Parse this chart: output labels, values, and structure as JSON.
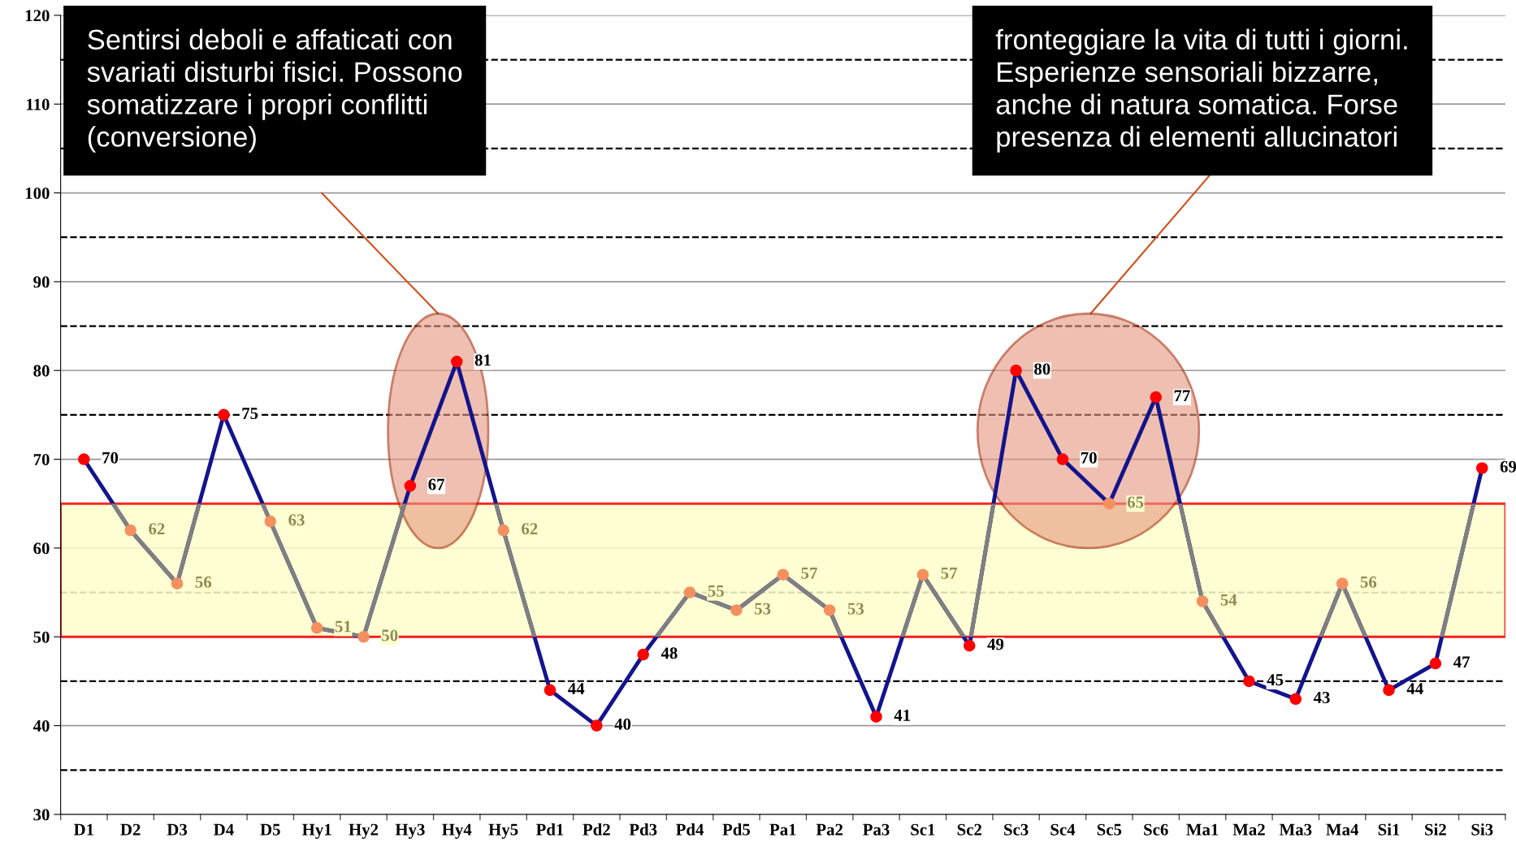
{
  "chart_data": {
    "type": "line",
    "categories": [
      "D1",
      "D2",
      "D3",
      "D4",
      "D5",
      "Hy1",
      "Hy2",
      "Hy3",
      "Hy4",
      "Hy5",
      "Pd1",
      "Pd2",
      "Pd3",
      "Pd4",
      "Pd5",
      "Pa1",
      "Pa2",
      "Pa3",
      "Sc1",
      "Sc2",
      "Sc3",
      "Sc4",
      "Sc5",
      "Sc6",
      "Ma1",
      "Ma2",
      "Ma3",
      "Ma4",
      "Si1",
      "Si2",
      "Si3"
    ],
    "series": [
      {
        "color": "#14148c",
        "values": [
          70,
          62,
          56,
          75,
          63,
          51,
          50,
          67,
          81,
          62,
          44,
          40,
          48,
          55,
          53,
          57,
          53,
          41,
          57,
          49,
          80,
          70,
          65,
          77,
          54,
          45,
          43,
          56,
          44,
          47,
          69
        ],
        "colors": [
          "#ff0000",
          "#f4905f",
          "#f4905f",
          "#ff0000",
          "#f4905f",
          "#f4905f",
          "#f4905f",
          "#ff0000",
          "#ff0000",
          "#f4905f",
          "#ff0000",
          "#ff0000",
          "#ff0000",
          "#f4905f",
          "#f4905f",
          "#f4905f",
          "#f4905f",
          "#ff0000",
          "#f4905f",
          "#ff0000",
          "#ff0000",
          "#ff0000",
          "#f4905f",
          "#ff0000",
          "#f4905f",
          "#ff0000",
          "#ff0000",
          "#f4905f",
          "#ff0000",
          "#ff0000",
          "#ff0000"
        ]
      }
    ],
    "marker": "circle",
    "line_style": "solid",
    "data_labels": true,
    "ylim": [
      30,
      120
    ],
    "yticks": [
      30,
      40,
      50,
      60,
      70,
      80,
      90,
      100,
      110,
      120
    ],
    "grid": "y",
    "bands": [
      {
        "axis": "y",
        "from": 50,
        "to": 65,
        "color": "#ffffcc"
      }
    ],
    "ref_lines": [
      {
        "axis": "y",
        "value": 35,
        "line_style": "dashed"
      },
      {
        "axis": "y",
        "value": 45,
        "line_style": "dashed"
      },
      {
        "axis": "y",
        "value": 55,
        "line_style": "dashed"
      },
      {
        "axis": "y",
        "value": 75,
        "line_style": "dashed"
      },
      {
        "axis": "y",
        "value": 85,
        "line_style": "dashed"
      },
      {
        "axis": "y",
        "value": 95,
        "line_style": "dashed"
      },
      {
        "axis": "y",
        "value": 105,
        "line_style": "dashed"
      },
      {
        "axis": "y",
        "value": 115,
        "line_style": "dashed"
      }
    ],
    "annotations": [
      "Sentirsi deboli e affaticati con svariati disturbi fisici. Possono somatizzare i propri conflitti (conversione)",
      "fronteggiare la vita di tutti i giorni. Esperienze sensoriali bizzarre, anche di natura somatica. Forse presenza di elementi allucinatori"
    ]
  }
}
